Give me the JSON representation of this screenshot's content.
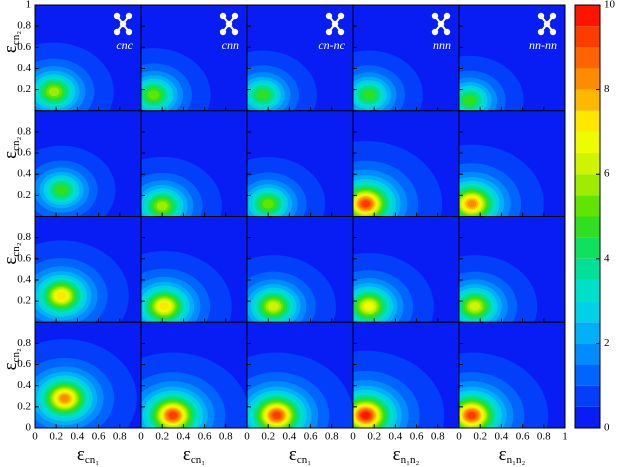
{
  "chart_data": {
    "type": "contour",
    "xlim": [
      0,
      1
    ],
    "ylim": [
      0,
      1
    ],
    "xticks": [
      0,
      0.2,
      0.4,
      0.6,
      0.8,
      1
    ],
    "yticks": [
      0,
      0.2,
      0.4,
      0.6,
      0.8,
      1
    ],
    "clim": [
      0,
      10
    ],
    "cticks": [
      0,
      2,
      4,
      6,
      8,
      10
    ],
    "levels": [
      0,
      0.5,
      1,
      1.5,
      2,
      2.5,
      3,
      3.5,
      4,
      4.5,
      5,
      5.5,
      6,
      6.5,
      7,
      7.5,
      8,
      8.5,
      9,
      9.5,
      10
    ],
    "colormap": [
      "#0a0af0",
      "#0050ff",
      "#00a0ff",
      "#00e0e0",
      "#00e080",
      "#40e000",
      "#c0f000",
      "#ffff00",
      "#ffa000",
      "#ff5000",
      "#ff0000"
    ],
    "column_titles": [
      "cnc",
      "cnn",
      "cn-nc",
      "nnn",
      "nn-nn"
    ],
    "xlabels": [
      {
        "main": "ε",
        "sub": "cn₁"
      },
      {
        "main": "ε",
        "sub": "cn₁"
      },
      {
        "main": "ε",
        "sub": "cn₁"
      },
      {
        "main": "ε",
        "sub": "n₁n₂"
      },
      {
        "main": "ε",
        "sub": "n₁n₂"
      }
    ],
    "ylabel": {
      "main": "ε",
      "sub": "cn₂"
    },
    "panels": [
      [
        {
          "center": [
            0.18,
            0.18
          ],
          "peak": 6
        },
        {
          "center": [
            0.12,
            0.15
          ],
          "peak": 5.5
        },
        {
          "center": [
            0.15,
            0.15
          ],
          "peak": 5
        },
        {
          "center": [
            0.15,
            0.15
          ],
          "peak": 5
        },
        {
          "center": [
            0.1,
            0.1
          ],
          "peak": 5
        }
      ],
      [
        {
          "center": [
            0.25,
            0.25
          ],
          "peak": 5
        },
        {
          "center": [
            0.2,
            0.1
          ],
          "peak": 6
        },
        {
          "center": [
            0.2,
            0.12
          ],
          "peak": 5.5
        },
        {
          "center": [
            0.12,
            0.12
          ],
          "peak": 9.5
        },
        {
          "center": [
            0.12,
            0.12
          ],
          "peak": 8.5
        }
      ],
      [
        {
          "center": [
            0.25,
            0.25
          ],
          "peak": 7.5
        },
        {
          "center": [
            0.22,
            0.15
          ],
          "peak": 7.5
        },
        {
          "center": [
            0.25,
            0.15
          ],
          "peak": 6.5
        },
        {
          "center": [
            0.15,
            0.15
          ],
          "peak": 7
        },
        {
          "center": [
            0.15,
            0.15
          ],
          "peak": 6.5
        }
      ],
      [
        {
          "center": [
            0.28,
            0.28
          ],
          "peak": 8.5
        },
        {
          "center": [
            0.3,
            0.12
          ],
          "peak": 9.5
        },
        {
          "center": [
            0.28,
            0.12
          ],
          "peak": 9.5
        },
        {
          "center": [
            0.12,
            0.12
          ],
          "peak": 10
        },
        {
          "center": [
            0.12,
            0.12
          ],
          "peak": 9.5
        }
      ]
    ]
  }
}
